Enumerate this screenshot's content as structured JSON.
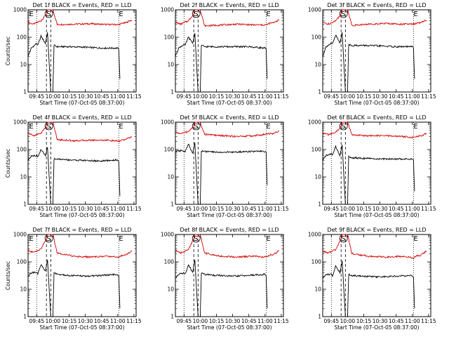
{
  "colors": {
    "events": "#000000",
    "lld": "#d40000",
    "background": "#ffffff"
  },
  "chart_data": [
    {
      "type": "line",
      "title": "Det 1f BLACK = Events, RED = LLD",
      "xlabel": "Start Time (07-Oct-05 08:37:00)",
      "ylabel": "Counts/sec",
      "yscale": "log",
      "ylim": [
        1,
        1000
      ],
      "yticks": [
        "1",
        "10",
        "100",
        "1000"
      ],
      "xticks": [
        "09:45",
        "10:00",
        "10:15",
        "10:30",
        "10:45",
        "11:00",
        "11:15"
      ],
      "markers": [
        "E",
        "S",
        "E"
      ],
      "series": [
        {
          "color": "#d40000",
          "x": [
            "09:37",
            "09:42",
            "09:49",
            "09:54",
            "09:55",
            "09:57",
            "10:00",
            "10:04",
            "10:20",
            "10:35",
            "10:50",
            "11:01",
            "11:05",
            "11:07",
            "11:10",
            "11:13"
          ],
          "y": [
            350,
            300,
            400,
            700,
            1000,
            1000,
            1000,
            290,
            300,
            310,
            290,
            290,
            330,
            330,
            380,
            420
          ]
        },
        {
          "color": "#000000",
          "x": [
            "09:37",
            "09:40",
            "09:45",
            "09:46",
            "09:49",
            "09:53",
            "09:55",
            "09:58",
            "10:00",
            "10:01",
            "10:04",
            "10:15",
            "10:30",
            "10:45",
            "11:00",
            "11:01",
            "11:02"
          ],
          "y": [
            20,
            40,
            60,
            50,
            110,
            60,
            150,
            1,
            1,
            50,
            45,
            45,
            43,
            40,
            40,
            35,
            3
          ]
        }
      ]
    },
    {
      "type": "line",
      "title": "Det 2f BLACK = Events, RED = LLD",
      "xlabel": "Start Time (07-Oct-05 08:37:00)",
      "ylabel": "",
      "yscale": "log",
      "ylim": [
        1,
        1000
      ],
      "yticks": [
        "1",
        "10",
        "100",
        "1000"
      ],
      "xticks": [
        "09:45",
        "10:00",
        "10:15",
        "10:30",
        "10:45",
        "11:00",
        "11:15"
      ],
      "markers": [
        "S",
        "E"
      ],
      "series": [
        {
          "color": "#d40000",
          "x": [
            "09:37",
            "09:42",
            "09:49",
            "09:54",
            "09:55",
            "09:57",
            "10:00",
            "10:04",
            "10:20",
            "10:35",
            "10:50",
            "11:01",
            "11:05",
            "11:07",
            "11:10",
            "11:13"
          ],
          "y": [
            350,
            300,
            400,
            700,
            1000,
            1000,
            1000,
            260,
            280,
            300,
            280,
            280,
            330,
            330,
            380,
            420
          ]
        },
        {
          "color": "#000000",
          "x": [
            "09:37",
            "09:40",
            "09:45",
            "09:46",
            "09:49",
            "09:53",
            "09:55",
            "09:58",
            "10:00",
            "10:01",
            "10:04",
            "10:15",
            "10:30",
            "10:45",
            "11:00",
            "11:01",
            "11:02"
          ],
          "y": [
            20,
            40,
            55,
            50,
            100,
            60,
            140,
            1,
            1,
            50,
            45,
            45,
            45,
            45,
            40,
            35,
            3
          ]
        }
      ]
    },
    {
      "type": "line",
      "title": "Det 3f BLACK = Events, RED = LLD",
      "xlabel": "Start Time (07-Oct-05 08:37:00)",
      "ylabel": "",
      "yscale": "log",
      "ylim": [
        1,
        1000
      ],
      "yticks": [
        "1",
        "10",
        "100",
        "1000"
      ],
      "xticks": [
        "09:45",
        "10:00",
        "10:15",
        "10:30",
        "10:45",
        "11:00",
        "11:15"
      ],
      "markers": [
        "S",
        "E"
      ],
      "series": [
        {
          "color": "#d40000",
          "x": [
            "09:37",
            "09:42",
            "09:49",
            "09:54",
            "09:55",
            "09:57",
            "10:00",
            "10:04",
            "10:20",
            "10:35",
            "10:50",
            "11:01",
            "11:05",
            "11:07",
            "11:10",
            "11:13"
          ],
          "y": [
            350,
            300,
            400,
            700,
            1000,
            1000,
            1000,
            270,
            300,
            320,
            300,
            300,
            330,
            330,
            380,
            420
          ]
        },
        {
          "color": "#000000",
          "x": [
            "09:37",
            "09:40",
            "09:45",
            "09:46",
            "09:49",
            "09:53",
            "09:55",
            "09:58",
            "10:00",
            "10:01",
            "10:04",
            "10:15",
            "10:30",
            "10:45",
            "11:00",
            "11:01",
            "11:02"
          ],
          "y": [
            20,
            45,
            60,
            55,
            120,
            60,
            150,
            1,
            1,
            55,
            50,
            50,
            48,
            45,
            45,
            40,
            3
          ]
        }
      ]
    },
    {
      "type": "line",
      "title": "Det 4f BLACK = Events, RED = LLD",
      "xlabel": "Start Time (07-Oct-05 08:37:00)",
      "ylabel": "Counts/sec",
      "yscale": "log",
      "ylim": [
        1,
        1000
      ],
      "yticks": [
        "1",
        "10",
        "100",
        "1000"
      ],
      "xticks": [
        "09:45",
        "10:00",
        "10:15",
        "10:30",
        "10:45",
        "11:00",
        "11:15"
      ],
      "markers": [
        "E",
        "S",
        "E"
      ],
      "series": [
        {
          "color": "#d40000",
          "x": [
            "09:37",
            "09:42",
            "09:49",
            "09:54",
            "09:55",
            "09:57",
            "10:00",
            "10:04",
            "10:20",
            "10:35",
            "10:50",
            "11:01",
            "11:05",
            "11:07",
            "11:10",
            "11:13"
          ],
          "y": [
            400,
            320,
            400,
            700,
            1000,
            1000,
            1000,
            230,
            210,
            220,
            220,
            200,
            230,
            230,
            260,
            300
          ]
        },
        {
          "color": "#000000",
          "x": [
            "09:37",
            "09:40",
            "09:45",
            "09:46",
            "09:49",
            "09:53",
            "09:55",
            "09:58",
            "10:00",
            "10:01",
            "10:04",
            "10:15",
            "10:30",
            "10:45",
            "11:00",
            "11:01",
            "11:02"
          ],
          "y": [
            40,
            60,
            60,
            55,
            100,
            60,
            120,
            1,
            1,
            45,
            45,
            42,
            40,
            38,
            42,
            35,
            2
          ]
        }
      ]
    },
    {
      "type": "line",
      "title": "Det 5f BLACK = Events, RED = LLD",
      "xlabel": "Start Time (07-Oct-05 08:37:00)",
      "ylabel": "",
      "yscale": "log",
      "ylim": [
        1,
        1000
      ],
      "yticks": [
        "1",
        "10",
        "100",
        "1000"
      ],
      "xticks": [
        "09:45",
        "10:00",
        "10:15",
        "10:30",
        "10:45",
        "11:00",
        "11:15"
      ],
      "markers": [
        "S",
        "E"
      ],
      "series": [
        {
          "color": "#d40000",
          "x": [
            "09:37",
            "09:42",
            "09:49",
            "09:54",
            "09:55",
            "09:57",
            "10:00",
            "10:04",
            "10:20",
            "10:35",
            "10:50",
            "11:01",
            "11:05",
            "11:07",
            "11:10",
            "11:13"
          ],
          "y": [
            430,
            380,
            450,
            700,
            1000,
            1000,
            1000,
            360,
            320,
            300,
            320,
            360,
            390,
            380,
            420,
            480
          ]
        },
        {
          "color": "#000000",
          "x": [
            "09:37",
            "09:40",
            "09:45",
            "09:46",
            "09:49",
            "09:53",
            "09:55",
            "09:58",
            "10:00",
            "10:01",
            "10:04",
            "10:15",
            "10:30",
            "10:45",
            "11:00",
            "11:01",
            "11:02"
          ],
          "y": [
            80,
            90,
            90,
            85,
            160,
            70,
            180,
            1,
            1,
            90,
            85,
            80,
            80,
            85,
            85,
            75,
            5
          ]
        }
      ]
    },
    {
      "type": "line",
      "title": "Det 6f BLACK = Events, RED = LLD",
      "xlabel": "Start Time (07-Oct-05 08:37:00)",
      "ylabel": "",
      "yscale": "log",
      "ylim": [
        1,
        1000
      ],
      "yticks": [
        "1",
        "10",
        "100",
        "1000"
      ],
      "xticks": [
        "09:45",
        "10:00",
        "10:15",
        "10:30",
        "10:45",
        "11:00",
        "11:15"
      ],
      "markers": [
        "S",
        "E"
      ],
      "series": [
        {
          "color": "#d40000",
          "x": [
            "09:37",
            "09:42",
            "09:49",
            "09:54",
            "09:55",
            "09:57",
            "10:00",
            "10:04",
            "10:20",
            "10:35",
            "10:50",
            "11:01",
            "11:05",
            "11:07",
            "11:10",
            "11:13"
          ],
          "y": [
            400,
            350,
            420,
            700,
            1000,
            1000,
            1000,
            340,
            320,
            320,
            300,
            280,
            310,
            310,
            340,
            380
          ]
        },
        {
          "color": "#000000",
          "x": [
            "09:37",
            "09:40",
            "09:45",
            "09:46",
            "09:49",
            "09:53",
            "09:55",
            "09:58",
            "10:00",
            "10:01",
            "10:04",
            "10:15",
            "10:30",
            "10:45",
            "11:00",
            "11:01",
            "11:02"
          ],
          "y": [
            40,
            60,
            70,
            60,
            130,
            60,
            150,
            1,
            1,
            55,
            50,
            48,
            45,
            45,
            45,
            40,
            3
          ]
        }
      ]
    },
    {
      "type": "line",
      "title": "Det 7f BLACK = Events, RED = LLD",
      "xlabel": "Start Time (07-Oct-05 08:37:00)",
      "ylabel": "Counts/sec",
      "yscale": "log",
      "ylim": [
        1,
        1000
      ],
      "yticks": [
        "1",
        "10",
        "100",
        "1000"
      ],
      "xticks": [
        "09:45",
        "10:00",
        "10:15",
        "10:30",
        "10:45",
        "11:00",
        "11:15"
      ],
      "markers": [
        "E",
        "S",
        "E"
      ],
      "series": [
        {
          "color": "#d40000",
          "x": [
            "09:37",
            "09:42",
            "09:49",
            "09:54",
            "09:55",
            "09:57",
            "10:00",
            "10:04",
            "10:20",
            "10:35",
            "10:50",
            "11:01",
            "11:05",
            "11:07",
            "11:10",
            "11:13"
          ],
          "y": [
            260,
            220,
            300,
            700,
            1000,
            1000,
            1000,
            210,
            160,
            150,
            160,
            150,
            180,
            180,
            210,
            260
          ]
        },
        {
          "color": "#000000",
          "x": [
            "09:37",
            "09:40",
            "09:45",
            "09:46",
            "09:49",
            "09:53",
            "09:55",
            "09:58",
            "10:00",
            "10:01",
            "10:04",
            "10:15",
            "10:30",
            "10:45",
            "11:00",
            "11:01",
            "11:02"
          ],
          "y": [
            30,
            40,
            40,
            35,
            80,
            45,
            120,
            1,
            1,
            40,
            35,
            32,
            30,
            32,
            35,
            30,
            2
          ]
        }
      ]
    },
    {
      "type": "line",
      "title": "Det 8f BLACK = Events, RED = LLD",
      "xlabel": "Start Time (07-Oct-05 08:37:00)",
      "ylabel": "",
      "yscale": "log",
      "ylim": [
        1,
        1000
      ],
      "yticks": [
        "1",
        "10",
        "100",
        "1000"
      ],
      "xticks": [
        "09:45",
        "10:00",
        "10:15",
        "10:30",
        "10:45",
        "11:00",
        "11:15"
      ],
      "markers": [
        "S",
        "E"
      ],
      "series": [
        {
          "color": "#d40000",
          "x": [
            "09:37",
            "09:42",
            "09:49",
            "09:54",
            "09:55",
            "09:57",
            "10:00",
            "10:04",
            "10:20",
            "10:35",
            "10:50",
            "11:01",
            "11:05",
            "11:07",
            "11:10",
            "11:13"
          ],
          "y": [
            260,
            210,
            280,
            700,
            1000,
            1000,
            1000,
            210,
            160,
            150,
            160,
            150,
            180,
            180,
            210,
            260
          ]
        },
        {
          "color": "#000000",
          "x": [
            "09:37",
            "09:40",
            "09:45",
            "09:46",
            "09:49",
            "09:53",
            "09:55",
            "09:58",
            "10:00",
            "10:01",
            "10:04",
            "10:15",
            "10:30",
            "10:45",
            "11:00",
            "11:01",
            "11:02"
          ],
          "y": [
            25,
            35,
            40,
            35,
            80,
            40,
            120,
            1,
            1,
            40,
            35,
            32,
            30,
            32,
            35,
            30,
            2
          ]
        }
      ]
    },
    {
      "type": "line",
      "title": "Det 9f BLACK = Events, RED = LLD",
      "xlabel": "Start Time (07-Oct-05 08:37:00)",
      "ylabel": "",
      "yscale": "log",
      "ylim": [
        1,
        1000
      ],
      "yticks": [
        "1",
        "10",
        "100",
        "1000"
      ],
      "xticks": [
        "09:45",
        "10:00",
        "10:15",
        "10:30",
        "10:45",
        "11:00",
        "11:15"
      ],
      "markers": [
        "S",
        "E"
      ],
      "series": [
        {
          "color": "#d40000",
          "x": [
            "09:37",
            "09:42",
            "09:49",
            "09:54",
            "09:55",
            "09:57",
            "10:00",
            "10:04",
            "10:20",
            "10:35",
            "10:50",
            "11:01",
            "11:05",
            "11:07",
            "11:10",
            "11:13"
          ],
          "y": [
            250,
            210,
            280,
            700,
            1000,
            1000,
            1000,
            200,
            160,
            150,
            160,
            140,
            170,
            170,
            200,
            250
          ]
        },
        {
          "color": "#000000",
          "x": [
            "09:37",
            "09:40",
            "09:45",
            "09:46",
            "09:49",
            "09:53",
            "09:55",
            "09:58",
            "10:00",
            "10:01",
            "10:04",
            "10:15",
            "10:30",
            "10:45",
            "11:00",
            "11:01",
            "11:02"
          ],
          "y": [
            25,
            35,
            35,
            30,
            70,
            40,
            110,
            1,
            1,
            35,
            32,
            30,
            28,
            30,
            32,
            28,
            2
          ]
        }
      ]
    }
  ]
}
